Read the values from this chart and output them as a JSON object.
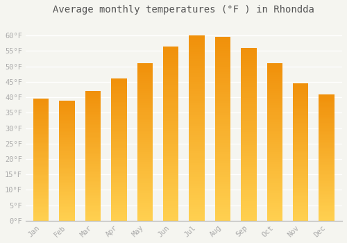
{
  "title": "Average monthly temperatures (°F ) in Rhondda",
  "months": [
    "Jan",
    "Feb",
    "Mar",
    "Apr",
    "May",
    "Jun",
    "Jul",
    "Aug",
    "Sep",
    "Oct",
    "Nov",
    "Dec"
  ],
  "values": [
    39.5,
    39.0,
    42.0,
    46.0,
    51.0,
    56.5,
    60.0,
    59.5,
    56.0,
    51.0,
    44.5,
    41.0
  ],
  "bar_color_bottom": "#FFD050",
  "bar_color_top": "#F0900A",
  "ylim": [
    0,
    65
  ],
  "yticks": [
    0,
    5,
    10,
    15,
    20,
    25,
    30,
    35,
    40,
    45,
    50,
    55,
    60
  ],
  "ytick_labels": [
    "0°F",
    "5°F",
    "10°F",
    "15°F",
    "20°F",
    "25°F",
    "30°F",
    "35°F",
    "40°F",
    "45°F",
    "50°F",
    "55°F",
    "60°F"
  ],
  "background_color": "#f5f5f0",
  "grid_color": "#ffffff",
  "title_fontsize": 10,
  "tick_fontsize": 7.5,
  "font_color": "#aaaaaa",
  "title_color": "#555555",
  "bar_width": 0.6
}
